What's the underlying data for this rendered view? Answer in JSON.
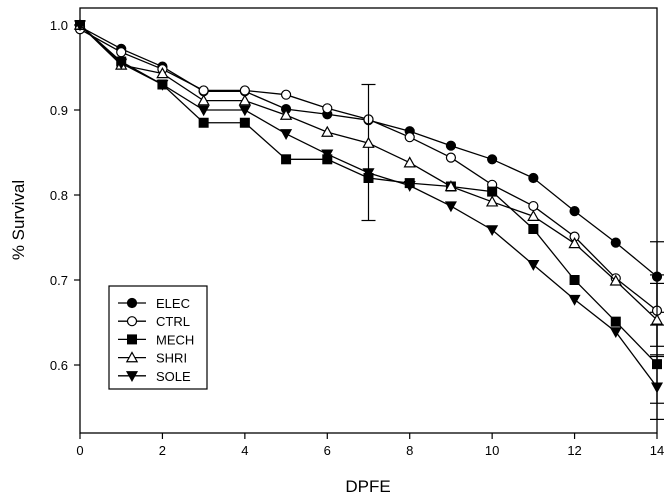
{
  "chart_data": {
    "type": "line",
    "title": "",
    "xlabel": "DPFE",
    "ylabel": "% Survival",
    "xlim": [
      0,
      14
    ],
    "ylim": [
      0.52,
      1.02
    ],
    "xticks": [
      0,
      2,
      4,
      6,
      8,
      10,
      12,
      14
    ],
    "yticks": [
      0.6,
      0.7,
      0.8,
      0.9,
      1.0
    ],
    "xtick_labels": [
      "0",
      "2",
      "4",
      "6",
      "8",
      "10",
      "12",
      "14"
    ],
    "ytick_labels": [
      "0.6",
      "0.7",
      "0.8",
      "0.9",
      "1.0"
    ],
    "grid": false,
    "legend_position": "bottom-left",
    "x": [
      0,
      1,
      2,
      3,
      4,
      5,
      6,
      7,
      8,
      9,
      10,
      11,
      12,
      13,
      14
    ],
    "series": [
      {
        "name": "ELEC",
        "marker": "circle-filled",
        "values": [
          0.998,
          0.972,
          0.951,
          0.922,
          0.922,
          0.901,
          0.895,
          0.888,
          0.875,
          0.858,
          0.842,
          0.82,
          0.781,
          0.744,
          0.704
        ],
        "error_bars": [
          {
            "x": 14,
            "low": 0.662,
            "high": 0.745
          }
        ]
      },
      {
        "name": "CTRL",
        "marker": "circle-open",
        "values": [
          0.995,
          0.968,
          0.948,
          0.923,
          0.923,
          0.918,
          0.902,
          0.889,
          0.868,
          0.844,
          0.812,
          0.787,
          0.751,
          0.702,
          0.664
        ],
        "error_bars": [
          {
            "x": 14,
            "low": 0.622,
            "high": 0.706
          }
        ]
      },
      {
        "name": "MECH",
        "marker": "square-filled",
        "values": [
          1.0,
          0.957,
          0.93,
          0.885,
          0.885,
          0.842,
          0.842,
          0.82,
          0.814,
          0.81,
          0.804,
          0.76,
          0.7,
          0.651,
          0.601
        ],
        "error_bars": [
          {
            "x": 7,
            "low": 0.77,
            "high": 0.93
          },
          {
            "x": 14,
            "low": 0.555,
            "high": 0.647
          }
        ]
      },
      {
        "name": "SHRI",
        "marker": "triangle-up-open",
        "values": [
          1.0,
          0.953,
          0.943,
          0.911,
          0.911,
          0.894,
          0.874,
          0.861,
          0.838,
          0.81,
          0.792,
          0.775,
          0.743,
          0.699,
          0.653
        ],
        "error_bars": [
          {
            "x": 14,
            "low": 0.61,
            "high": 0.696
          }
        ]
      },
      {
        "name": "SOLE",
        "marker": "triangle-down-filled",
        "values": [
          1.0,
          0.955,
          0.93,
          0.9,
          0.9,
          0.872,
          0.848,
          0.826,
          0.811,
          0.787,
          0.759,
          0.718,
          0.677,
          0.639,
          0.574
        ],
        "error_bars": [
          {
            "x": 14,
            "low": 0.536,
            "high": 0.612
          }
        ]
      }
    ]
  }
}
